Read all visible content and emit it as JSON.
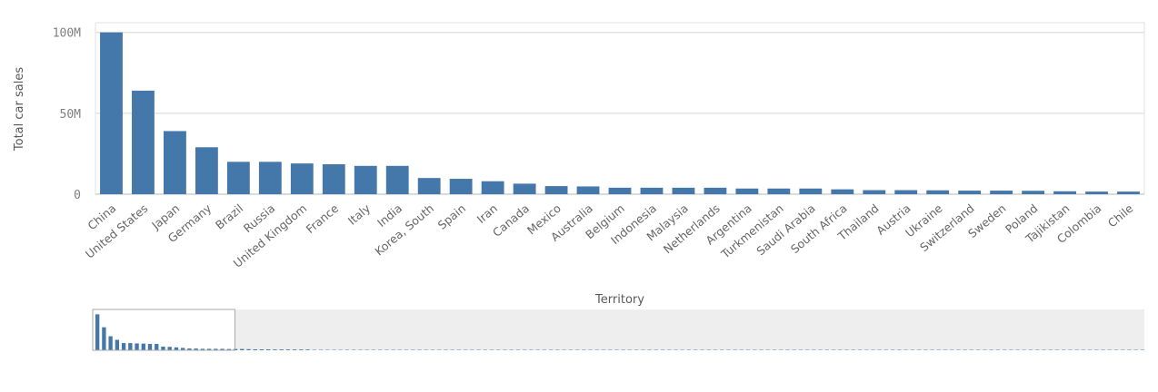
{
  "chart_data": {
    "type": "bar",
    "xlabel": "Territory",
    "ylabel": "Total car sales",
    "ylim": [
      0,
      106000000
    ],
    "y_ticks": [
      {
        "value": 0,
        "label": "0"
      },
      {
        "value": 50000000,
        "label": "50M"
      },
      {
        "value": 100000000,
        "label": "100M"
      }
    ],
    "grid": true,
    "bar_color": "#4477aa",
    "categories": [
      "China",
      "United States",
      "Japan",
      "Germany",
      "Brazil",
      "Russia",
      "United Kingdom",
      "France",
      "Italy",
      "India",
      "Korea, South",
      "Spain",
      "Iran",
      "Canada",
      "Mexico",
      "Australia",
      "Belgium",
      "Indonesia",
      "Malaysia",
      "Netherlands",
      "Argentina",
      "Turkmenistan",
      "Saudi Arabia",
      "South Africa",
      "Thailand",
      "Austria",
      "Ukraine",
      "Switzerland",
      "Sweden",
      "Poland",
      "Tajikistan",
      "Colombia",
      "Chile"
    ],
    "values": [
      100000000,
      64000000,
      39000000,
      29000000,
      20000000,
      20000000,
      19000000,
      18500000,
      17500000,
      17500000,
      10000000,
      9500000,
      8000000,
      6500000,
      5000000,
      4800000,
      4000000,
      4000000,
      4000000,
      4000000,
      3500000,
      3500000,
      3500000,
      3000000,
      2500000,
      2500000,
      2400000,
      2200000,
      2200000,
      2100000,
      1800000,
      1600000,
      1600000
    ],
    "navigator": {
      "visible_fraction": 0.2,
      "total_categories": 160,
      "values": [
        100000000,
        64000000,
        39000000,
        29000000,
        20000000,
        20000000,
        19000000,
        18500000,
        17500000,
        17500000,
        10000000,
        9500000,
        8000000,
        6500000,
        5000000,
        4800000,
        4000000,
        4000000,
        4000000,
        4000000,
        3500000,
        3500000,
        3500000,
        3000000,
        2500000,
        2500000,
        2400000,
        2200000,
        2200000,
        2100000,
        1800000,
        1600000,
        1600000
      ]
    }
  }
}
